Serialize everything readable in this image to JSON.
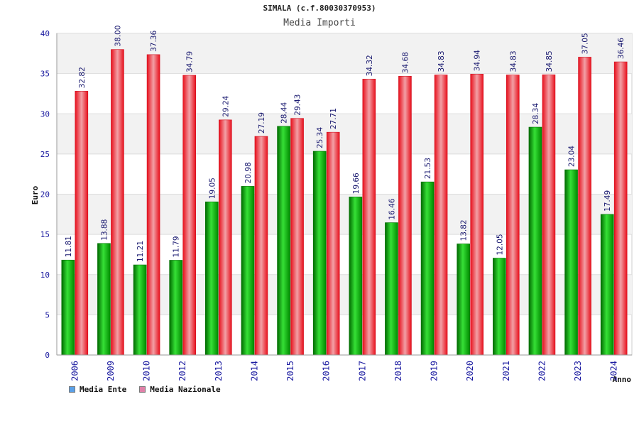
{
  "header": {
    "title": "SIMALA (c.f.80030370953)",
    "subtitle": "Media Importi"
  },
  "legend": {
    "items": [
      {
        "label": "Media Ente",
        "color": "#5aa0e8"
      },
      {
        "label": "Media Nazionale",
        "color": "#e080a8"
      }
    ]
  },
  "chart_data": {
    "type": "bar",
    "title": "Media Importi",
    "xlabel": "Anno",
    "ylabel": "Euro",
    "ylim": [
      0,
      40
    ],
    "yticks": [
      0,
      5,
      10,
      15,
      20,
      25,
      30,
      35,
      40
    ],
    "categories": [
      "2006",
      "2009",
      "2010",
      "2012",
      "2013",
      "2014",
      "2015",
      "2016",
      "2017",
      "2018",
      "2019",
      "2020",
      "2021",
      "2022",
      "2023",
      "2024"
    ],
    "series": [
      {
        "name": "Media Ente",
        "color": "#00b000",
        "values": [
          11.81,
          13.88,
          11.21,
          11.79,
          19.05,
          20.98,
          28.44,
          25.34,
          19.66,
          16.46,
          21.53,
          13.82,
          12.05,
          28.34,
          23.04,
          17.49
        ]
      },
      {
        "name": "Media Nazionale",
        "color": "#e8202a",
        "values": [
          32.82,
          38.0,
          37.36,
          34.79,
          29.24,
          27.19,
          29.43,
          27.71,
          34.32,
          34.68,
          34.83,
          34.94,
          34.83,
          34.85,
          37.05,
          36.46
        ]
      }
    ],
    "grid": true,
    "legend_position": "bottom-left"
  }
}
